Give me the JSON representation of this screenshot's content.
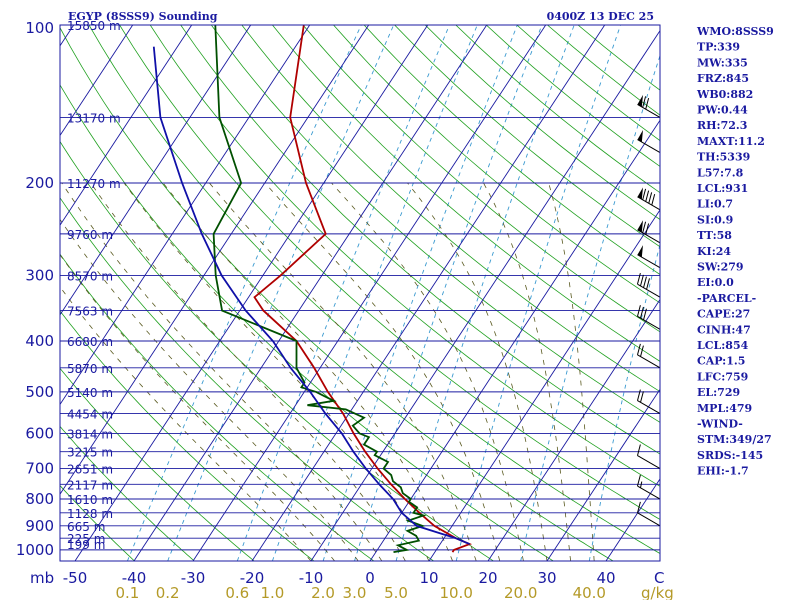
{
  "chart_data": {
    "type": "skew-t sounding",
    "title_left": "EGYP (8SSS9) Sounding",
    "title_right": "0400Z 13 DEC 25",
    "xlabel_unit": "C",
    "mixing_unit": "g/kg",
    "pressure_corner_label": "mb",
    "temperature_ticks": [
      "-50",
      "-40",
      "-30",
      "-20",
      "-10",
      "0",
      "10",
      "20",
      "30",
      "40"
    ],
    "temperature_values": [
      -50,
      -40,
      -30,
      -20,
      -10,
      0,
      10,
      20,
      30,
      40
    ],
    "mixing_ratio_ticks": [
      "0.1",
      "0.2",
      "0.6",
      "1.0",
      "2.0",
      "3.0",
      "5.0",
      "10.0",
      "20.0",
      "40.0"
    ],
    "mixing_ratio_values": [
      0.1,
      0.2,
      0.6,
      1.0,
      2.0,
      3.0,
      5.0,
      10.0,
      20.0,
      40.0
    ],
    "pressure_ticks": [
      "100",
      "200",
      "300",
      "400",
      "500",
      "600",
      "700",
      "800",
      "900",
      "1000"
    ],
    "pressure_values": [
      100,
      200,
      300,
      400,
      500,
      600,
      700,
      800,
      900,
      1000
    ],
    "height_labels": [
      {
        "text": "15850 m",
        "p": 100
      },
      {
        "text": "13170 m",
        "p": 150
      },
      {
        "text": "11270 m",
        "p": 200
      },
      {
        "text": "9760 m",
        "p": 250
      },
      {
        "text": "8570 m",
        "p": 300
      },
      {
        "text": "7563 m",
        "p": 350
      },
      {
        "text": "6680 m",
        "p": 400
      },
      {
        "text": "5870 m",
        "p": 450
      },
      {
        "text": "5140 m",
        "p": 500
      },
      {
        "text": "4454 m",
        "p": 550
      },
      {
        "text": "3814 m",
        "p": 600
      },
      {
        "text": "3215 m",
        "p": 650
      },
      {
        "text": "2651 m",
        "p": 700
      },
      {
        "text": "2117 m",
        "p": 750
      },
      {
        "text": "1610 m",
        "p": 800
      },
      {
        "text": "1128 m",
        "p": 850
      },
      {
        "text": "665 m",
        "p": 900
      },
      {
        "text": "225 m",
        "p": 950
      },
      {
        "text": "199 m",
        "p": 975
      }
    ],
    "series": [
      {
        "name": "Temperature",
        "color": "#b00000",
        "points": [
          [
            1010,
            13
          ],
          [
            1000,
            13
          ],
          [
            975,
            15
          ],
          [
            950,
            12
          ],
          [
            900,
            7
          ],
          [
            850,
            3
          ],
          [
            800,
            -1
          ],
          [
            750,
            -5
          ],
          [
            700,
            -9
          ],
          [
            650,
            -13
          ],
          [
            600,
            -17
          ],
          [
            550,
            -21
          ],
          [
            500,
            -26
          ],
          [
            450,
            -31
          ],
          [
            400,
            -37
          ],
          [
            350,
            -46
          ],
          [
            330,
            -49
          ],
          [
            300,
            -47
          ],
          [
            250,
            -44
          ],
          [
            200,
            -53
          ],
          [
            150,
            -63
          ],
          [
            100,
            -71
          ]
        ]
      },
      {
        "name": "Dewpoint",
        "color": "#005000",
        "points": [
          [
            1010,
            3
          ],
          [
            1000,
            5
          ],
          [
            980,
            3
          ],
          [
            960,
            6
          ],
          [
            940,
            5
          ],
          [
            920,
            3
          ],
          [
            900,
            5
          ],
          [
            880,
            2
          ],
          [
            860,
            4
          ],
          [
            850,
            2
          ],
          [
            830,
            2
          ],
          [
            810,
            0
          ],
          [
            800,
            0
          ],
          [
            780,
            -2
          ],
          [
            760,
            -3
          ],
          [
            750,
            -4
          ],
          [
            740,
            -5
          ],
          [
            720,
            -6
          ],
          [
            700,
            -8
          ],
          [
            680,
            -8
          ],
          [
            660,
            -11
          ],
          [
            650,
            -11
          ],
          [
            630,
            -14
          ],
          [
            610,
            -14
          ],
          [
            600,
            -16
          ],
          [
            580,
            -18
          ],
          [
            560,
            -17
          ],
          [
            550,
            -19
          ],
          [
            540,
            -21
          ],
          [
            530,
            -28
          ],
          [
            520,
            -24
          ],
          [
            510,
            -26
          ],
          [
            500,
            -28
          ],
          [
            490,
            -31
          ],
          [
            480,
            -31
          ],
          [
            450,
            -34
          ],
          [
            400,
            -37
          ],
          [
            350,
            -53
          ],
          [
            300,
            -58
          ],
          [
            250,
            -63
          ],
          [
            200,
            -64
          ],
          [
            150,
            -75
          ],
          [
            100,
            -86
          ]
        ]
      },
      {
        "name": "Parcel",
        "color": "#1010a8",
        "points": [
          [
            975,
            15
          ],
          [
            950,
            12
          ],
          [
            931,
            9
          ],
          [
            900,
            4
          ],
          [
            850,
            0
          ],
          [
            800,
            -3
          ],
          [
            750,
            -7
          ],
          [
            700,
            -11
          ],
          [
            650,
            -15
          ],
          [
            600,
            -19
          ],
          [
            550,
            -24
          ],
          [
            500,
            -29
          ],
          [
            450,
            -35
          ],
          [
            400,
            -41
          ],
          [
            350,
            -49
          ],
          [
            300,
            -57
          ],
          [
            250,
            -65
          ],
          [
            200,
            -74
          ],
          [
            150,
            -85
          ],
          [
            110,
            -94
          ]
        ]
      }
    ],
    "indices": [
      "WMO:8SSS9",
      "TP:339",
      "MW:335",
      "FRZ:845",
      "WB0:882",
      "PW:0.44",
      "RH:72.3",
      "MAXT:11.2",
      "TH:5339",
      "L57:7.8",
      "LCL:931",
      "LI:0.7",
      "SI:0.9",
      "TT:58",
      "KI:24",
      "SW:279",
      "EI:0.0",
      "-PARCEL-",
      "CAPE:27",
      "CINH:47",
      "LCL:854",
      "CAP:1.5",
      "LFC:759",
      "EL:729",
      "MPL:479",
      "-WIND-",
      "STM:349/27",
      "SRDS:-145",
      "EHI:-1.7"
    ],
    "wind_barbs": [
      {
        "p": 150,
        "speed": 70
      },
      {
        "p": 175,
        "speed": 50
      },
      {
        "p": 225,
        "speed": 90
      },
      {
        "p": 260,
        "speed": 70
      },
      {
        "p": 290,
        "speed": 50
      },
      {
        "p": 330,
        "speed": 40
      },
      {
        "p": 380,
        "speed": 30
      },
      {
        "p": 450,
        "speed": 20
      },
      {
        "p": 550,
        "speed": 20
      },
      {
        "p": 700,
        "speed": 10
      },
      {
        "p": 800,
        "speed": 15
      },
      {
        "p": 900,
        "speed": 10
      }
    ],
    "colors": {
      "isobar": "#1a1aa0",
      "isotherm": "#1a1aa0",
      "dry_adiabat": "#20a020",
      "moist_adiabat": "#5a5a20",
      "mixing_ratio": "#3a9ad0",
      "barb": "#000000"
    }
  }
}
